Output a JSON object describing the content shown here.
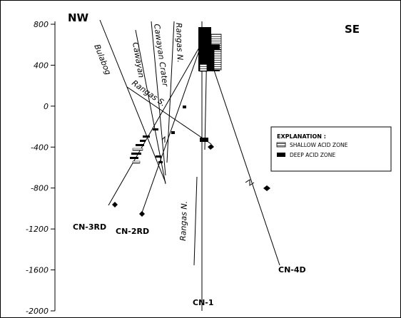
{
  "orientation": {
    "left": "NW",
    "right": "SE"
  },
  "y_axis": {
    "ticks": [
      "800",
      "400",
      "0",
      "-400",
      "-800",
      "-1200",
      "-1600",
      "-2000"
    ]
  },
  "faults": [
    "Bulabog",
    "Cawayan",
    "Cawayan Crater",
    "Rangas N.",
    "Rangas S.",
    "Rangas N."
  ],
  "wells": [
    "CN-3RD",
    "CN-2RD",
    "CN-1",
    "CN-4D"
  ],
  "legend": {
    "title": "EXPLANATION :",
    "items": [
      {
        "label": "SHALLOW ACID ZONE",
        "pattern": "hatched"
      },
      {
        "label": "DEEP ACID ZONE",
        "pattern": "solid"
      }
    ]
  },
  "colors": {
    "ink": "#000000",
    "paper": "#ffffff"
  }
}
